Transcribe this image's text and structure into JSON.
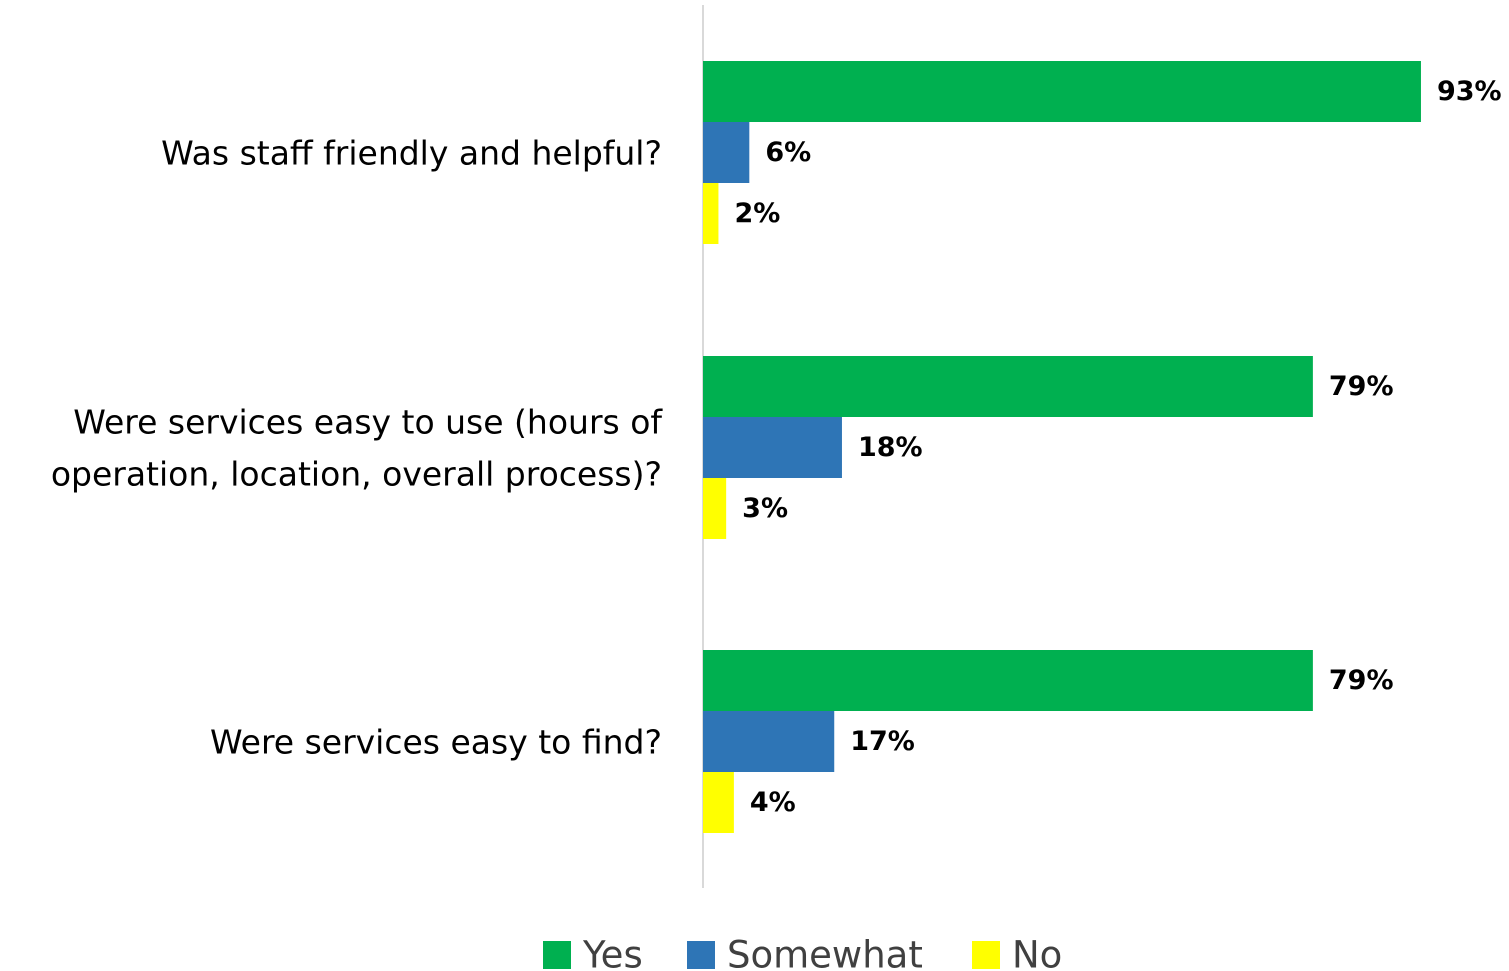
{
  "chart_data": {
    "type": "bar",
    "orientation": "horizontal",
    "title": "",
    "xlabel": "",
    "ylabel": "",
    "xlim": [
      0,
      100
    ],
    "grid": false,
    "legend_position": "bottom",
    "value_suffix": "%",
    "categories": [
      [
        "Was staff friendly and helpful?"
      ],
      [
        "Were services easy to use (hours of",
        "operation, location, overall process)?"
      ],
      [
        "Were services easy to find?"
      ]
    ],
    "series": [
      {
        "name": "Yes",
        "color": "#00b050",
        "values": [
          93,
          79,
          79
        ]
      },
      {
        "name": "Somewhat",
        "color": "#2e75b6",
        "values": [
          6,
          18,
          17
        ]
      },
      {
        "name": "No",
        "color": "#ffff00",
        "values": [
          2,
          3,
          4
        ]
      }
    ],
    "data_labels": [
      [
        "93%",
        "79%",
        "79%"
      ],
      [
        "6%",
        "18%",
        "17%"
      ],
      [
        "2%",
        "3%",
        "4%"
      ]
    ]
  }
}
